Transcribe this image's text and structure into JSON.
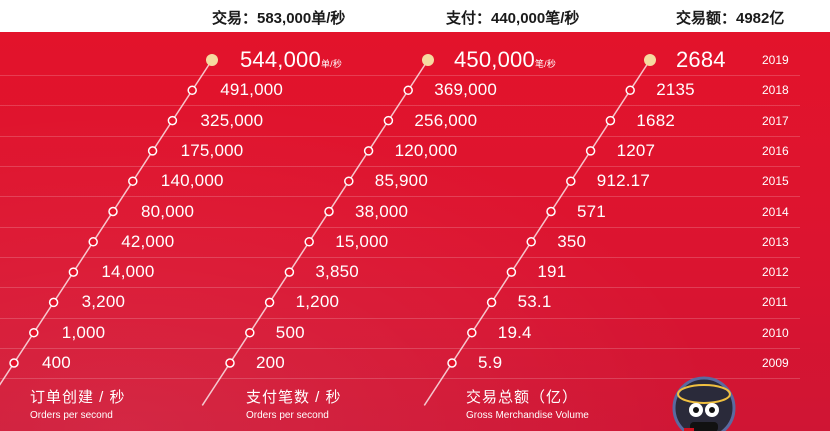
{
  "header": {
    "transactions_label": "交易：583,000单/秒",
    "payments_label": "支付：440,000笔/秒",
    "gmv_label": "交易额：4982亿"
  },
  "unit_per_second": "单/秒",
  "unit_payments_per_second": "笔/秒",
  "years": [
    "2019",
    "2018",
    "2017",
    "2016",
    "2015",
    "2014",
    "2013",
    "2012",
    "2011",
    "2010",
    "2009"
  ],
  "orders": [
    "544,000",
    "491,000",
    "325,000",
    "175,000",
    "140,000",
    "80,000",
    "42,000",
    "14,000",
    "3,200",
    "1,000",
    "400"
  ],
  "payments": [
    "450,000",
    "369,000",
    "256,000",
    "120,000",
    "85,900",
    "38,000",
    "15,000",
    "3,850",
    "1,200",
    "500",
    "200"
  ],
  "gmv": [
    "2684",
    "2135",
    "1682",
    "1207",
    "912.17",
    "571",
    "350",
    "191",
    "53.1",
    "19.4",
    "5.9"
  ],
  "footer": {
    "orders_title": "订单创建 / 秒",
    "orders_sub": "Orders per second",
    "payments_title": "支付笔数 / 秒",
    "payments_sub": "Orders per second",
    "gmv_title": "交易总额（亿）",
    "gmv_sub": "Gross Merchandise Volume"
  },
  "colors": {
    "panel_red": "#e3132b",
    "dot_highlight": "#f6dba0",
    "text": "#ffffff"
  }
}
